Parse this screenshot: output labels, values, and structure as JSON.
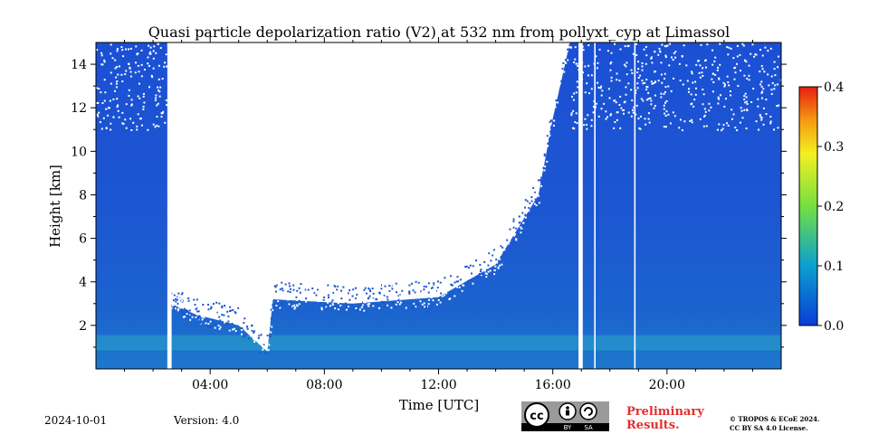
{
  "chart_data": {
    "type": "heatmap",
    "title": "Quasi particle depolarization ratio (V2) at 532 nm from pollyxt_cyp at Limassol",
    "xlabel": "Time [UTC]",
    "ylabel": "Height [km]",
    "xlim": [
      0,
      24
    ],
    "ylim": [
      0,
      15
    ],
    "x_ticks": [
      4,
      8,
      12,
      16,
      20
    ],
    "x_tick_labels": [
      "04:00",
      "08:00",
      "12:00",
      "16:00",
      "20:00"
    ],
    "y_ticks": [
      2,
      4,
      6,
      8,
      10,
      12,
      14
    ],
    "y_tick_labels": [
      "2",
      "4",
      "6",
      "8",
      "10",
      "12",
      "14"
    ],
    "colorbar": {
      "range": [
        0.0,
        0.4
      ],
      "ticks": [
        0.0,
        0.1,
        0.2,
        0.3,
        0.4
      ],
      "tick_labels": [
        "0.0",
        "0.1",
        "0.2",
        "0.3",
        "0.4"
      ],
      "colormap": "jet"
    },
    "cloud_free_top_km": [
      [
        0.0,
        15
      ],
      [
        2.5,
        15
      ],
      [
        2.6,
        3.0
      ],
      [
        3.5,
        2.5
      ],
      [
        5.0,
        2.0
      ],
      [
        6.0,
        0.8
      ],
      [
        6.2,
        3.2
      ],
      [
        9.0,
        3.0
      ],
      [
        12.0,
        3.3
      ],
      [
        14.0,
        4.8
      ],
      [
        15.5,
        8.0
      ],
      [
        16.0,
        11.5
      ],
      [
        16.6,
        15
      ],
      [
        24.0,
        15
      ]
    ],
    "no_data_intervals": [
      [
        2.5,
        2.65
      ],
      [
        16.9,
        17.05
      ],
      [
        17.45,
        17.5
      ],
      [
        18.85,
        18.9
      ]
    ],
    "aerosol_layer": {
      "height_km": 1.2,
      "value": 0.12
    }
  },
  "footer": {
    "date": "2024-10-01",
    "version": "Version: 4.0",
    "preliminary": [
      "Preliminary",
      "Results."
    ],
    "copyright": [
      "© TROPOS & ECoE 2024.",
      "CC BY SA 4.0 License."
    ],
    "license_badge": [
      "BY",
      "SA"
    ]
  }
}
